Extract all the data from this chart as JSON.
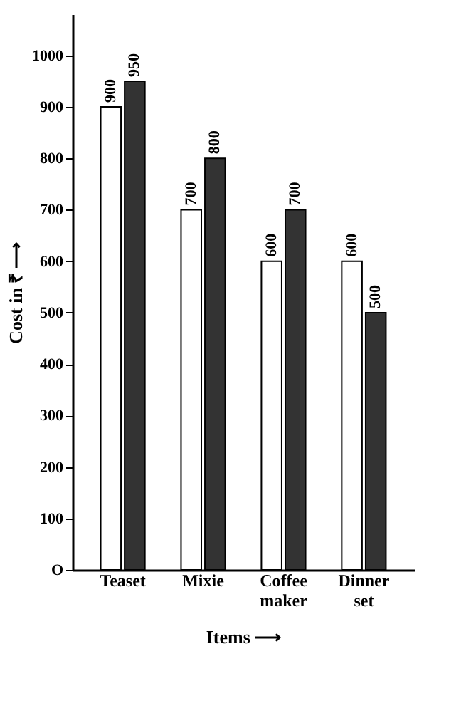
{
  "chart_data": {
    "type": "bar",
    "categories": [
      "Teaset",
      "Mixie",
      "Coffee maker",
      "Dinner set"
    ],
    "series": [
      {
        "color": "#ffffff",
        "values": [
          900,
          700,
          600,
          600
        ]
      },
      {
        "color": "#333333",
        "values": [
          950,
          800,
          700,
          500
        ]
      }
    ],
    "xlabel": "Items ⟶",
    "ylabel": "Cost in ₹ ⟶",
    "ylim": [
      0,
      1080
    ],
    "yticks": [
      {
        "value": 0,
        "label": "O"
      },
      100,
      200,
      300,
      400,
      500,
      600,
      700,
      800,
      900,
      1000
    ],
    "data_labels": true
  }
}
